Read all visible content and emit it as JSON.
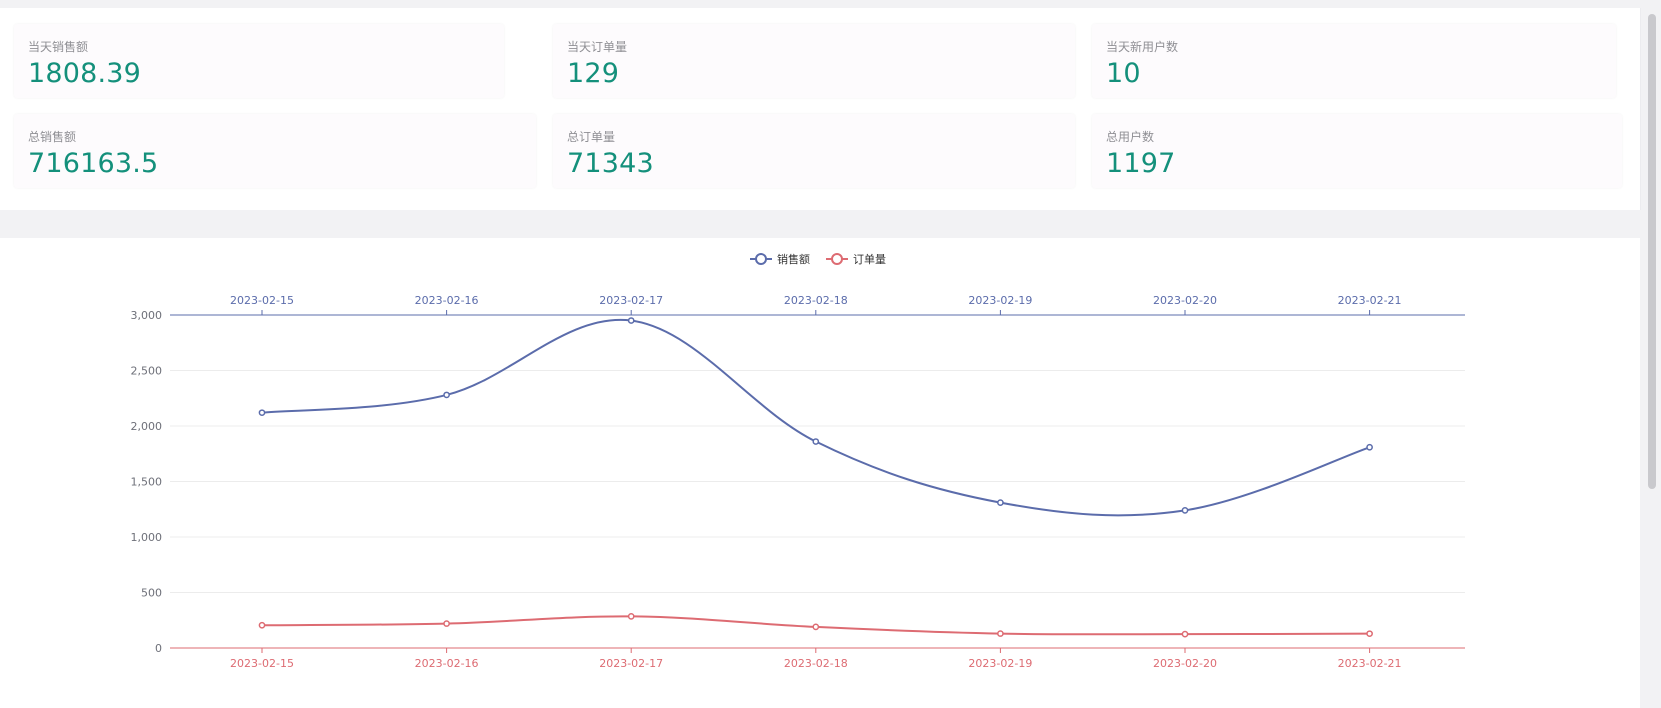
{
  "stats": [
    {
      "label": "当天销售额",
      "value": "1808.39"
    },
    {
      "label": "当天订单量",
      "value": "129"
    },
    {
      "label": "当天新用户数",
      "value": "10"
    },
    {
      "label": "总销售额",
      "value": "716163.5"
    },
    {
      "label": "总订单量",
      "value": "71343"
    },
    {
      "label": "总用户数",
      "value": "1197"
    }
  ],
  "chart_data": {
    "type": "line",
    "title": "",
    "categories": [
      "2023-02-15",
      "2023-02-16",
      "2023-02-17",
      "2023-02-18",
      "2023-02-19",
      "2023-02-20",
      "2023-02-21"
    ],
    "series": [
      {
        "name": "销售额",
        "color": "#5b6cab",
        "values": [
          2120,
          2280,
          2950,
          1860,
          1310,
          1240,
          1808.39
        ]
      },
      {
        "name": "订单量",
        "color": "#dd6b72",
        "values": [
          205,
          220,
          285,
          190,
          130,
          125,
          129
        ]
      }
    ],
    "yticks": [
      "0",
      "500",
      "1,000",
      "1,500",
      "2,000",
      "2,500",
      "3,000"
    ],
    "ylim": [
      0,
      3000
    ],
    "grid": true,
    "legend_position": "top-center"
  },
  "colors": {
    "value_text": "#14907b",
    "sales_line": "#5b6cab",
    "orders_line": "#dd6b72"
  }
}
